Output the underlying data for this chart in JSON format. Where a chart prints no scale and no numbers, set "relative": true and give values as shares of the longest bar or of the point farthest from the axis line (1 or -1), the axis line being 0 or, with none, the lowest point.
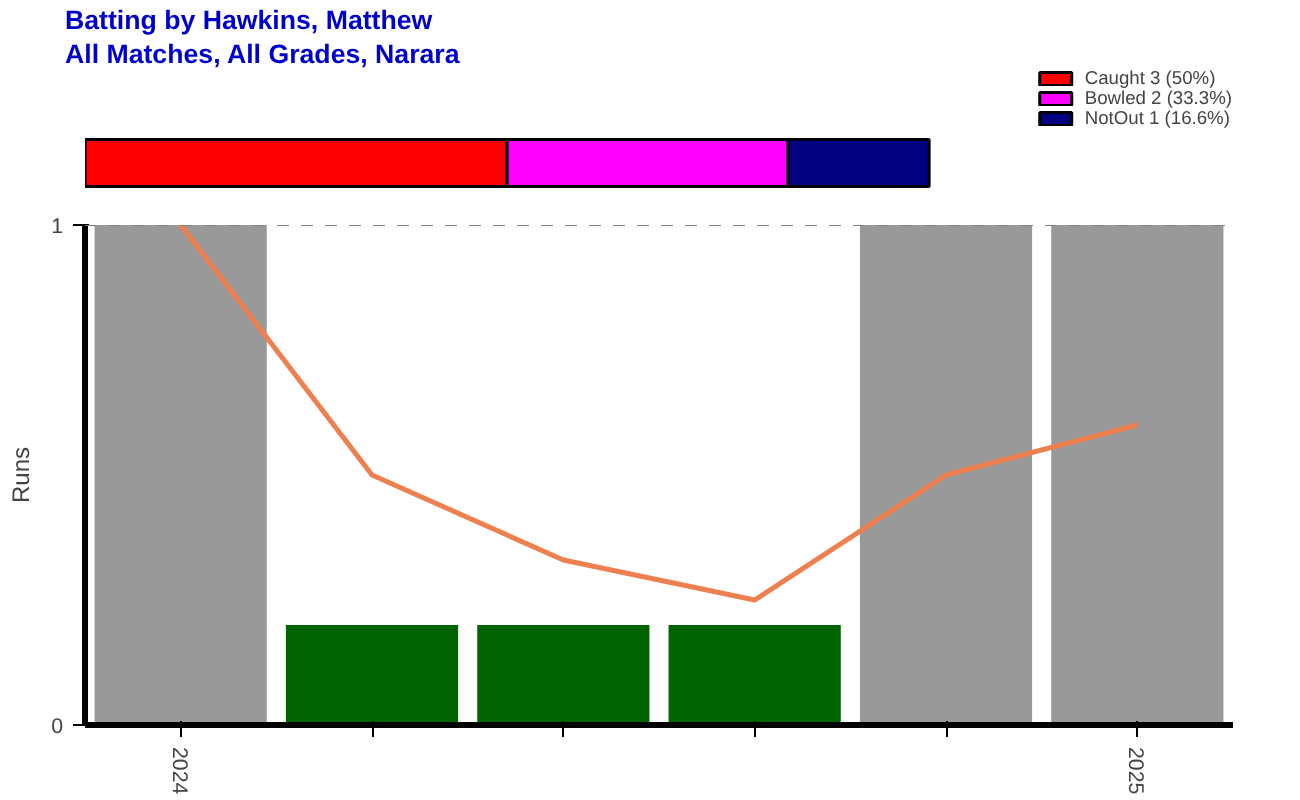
{
  "chart_data": [
    {
      "type": "bar",
      "title": "Batting by Hawkins, Matthew",
      "subtitle": "All Matches, All Grades, Narara",
      "orientation": "horizontal",
      "stacked": true,
      "relative": true,
      "categories": [
        null
      ],
      "legend": "top right",
      "series": [
        {
          "name": "Caught 3 (50%)",
          "color": "#ff0000",
          "values": [
            0.5
          ]
        },
        {
          "name": "Bowled 2 (33.3%)",
          "color": "#ff00ff",
          "values": [
            0.333
          ]
        },
        {
          "name": "NotOut 1 (16.6%)",
          "color": "#000080",
          "values": [
            0.167
          ]
        }
      ]
    },
    {
      "type": "bar",
      "ylabel": "Runs",
      "categories": [
        "2024",
        null,
        null,
        null,
        null,
        "2025"
      ],
      "ylim": [
        0,
        1
      ],
      "yticks": [
        0,
        1
      ],
      "grid": false,
      "ref_lines": [
        {
          "axis": "y",
          "value": 1,
          "color": "#808080",
          "line_style": "dashed"
        }
      ],
      "series": [
        {
          "color": "#999999",
          "values": [
            1,
            null,
            null,
            null,
            1,
            1
          ]
        },
        {
          "color": "#006400",
          "values": [
            null,
            0.2,
            0.2,
            0.2,
            null,
            null
          ]
        },
        {
          "type": "line",
          "color": "#ee8050",
          "values": [
            1,
            0.5,
            0.33,
            0.25,
            0.5,
            0.6
          ]
        }
      ]
    }
  ]
}
